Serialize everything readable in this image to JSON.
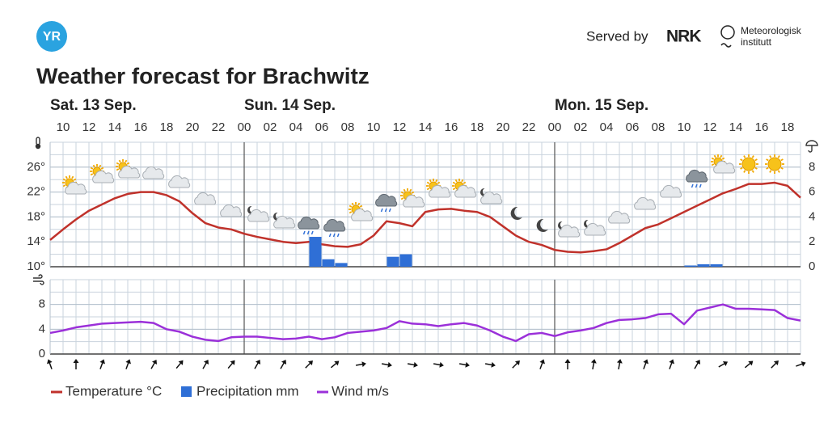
{
  "header": {
    "logo": "YR",
    "title": "Weather forecast for Brachwitz",
    "served_by": "Served by",
    "nrk": "NRK",
    "met": [
      "Meteorologisk",
      "institutt"
    ]
  },
  "chart_data": [
    {
      "type": "combo",
      "days": [
        "Sat. 13 Sep.",
        "Sun. 14 Sep.",
        "Mon. 15 Sep."
      ],
      "categories": [
        null,
        "10",
        null,
        "12",
        null,
        "14",
        null,
        "16",
        null,
        "18",
        null,
        "20",
        null,
        "22",
        null,
        "00",
        null,
        "02",
        null,
        "04",
        null,
        "06",
        null,
        "08",
        null,
        "10",
        null,
        "12",
        null,
        "14",
        null,
        "16",
        null,
        "18",
        null,
        "20",
        null,
        "22",
        null,
        "00",
        null,
        "02",
        null,
        "04",
        null,
        "06",
        null,
        "08",
        null,
        "10",
        null,
        "12",
        null,
        "14",
        null,
        "16",
        null,
        "18",
        null
      ],
      "ylim": [
        10,
        30
      ],
      "yticks": [
        {
          "value": 10,
          "label": "10°"
        },
        {
          "value": 14,
          "label": "14°"
        },
        {
          "value": 18,
          "label": "18°"
        },
        {
          "value": 22,
          "label": "22°"
        },
        {
          "value": 26,
          "label": "26°"
        }
      ],
      "y2lim": [
        0,
        10
      ],
      "y2ticks": [
        0,
        2,
        4,
        6,
        8
      ],
      "grid": true,
      "series": [
        {
          "name": "Temperature °C",
          "kind": "line",
          "color": "#c0322b",
          "values": [
            14.3,
            16.0,
            17.6,
            19.0,
            20.0,
            21.0,
            21.7,
            22.0,
            22.0,
            21.5,
            20.5,
            18.6,
            17.0,
            16.3,
            16.0,
            15.3,
            14.8,
            14.4,
            14.0,
            13.8,
            14.0,
            13.6,
            13.3,
            13.2,
            13.6,
            15.0,
            17.3,
            17.0,
            16.5,
            18.8,
            19.2,
            19.3,
            19.0,
            18.8,
            18.0,
            16.5,
            15.0,
            14.0,
            13.5,
            12.7,
            12.4,
            12.3,
            12.5,
            12.8,
            13.8,
            15.0,
            16.2,
            16.8,
            17.8,
            18.8,
            19.8,
            20.8,
            21.8,
            22.5,
            23.3,
            23.3,
            23.5,
            23.0,
            21.1
          ]
        },
        {
          "name": "Precipitation mm",
          "kind": "bar",
          "axis": "y2",
          "color": "#2f6fd6",
          "values": [
            0,
            0,
            0,
            0,
            0,
            0,
            0,
            0,
            0,
            0,
            0,
            0,
            0,
            0,
            0,
            0,
            0,
            0,
            0,
            0,
            2.4,
            0.6,
            0.3,
            0,
            0,
            0,
            0.8,
            1.0,
            0,
            0,
            0,
            0,
            0,
            0,
            0,
            0,
            0,
            0,
            0,
            0,
            0,
            0,
            0,
            0,
            0,
            0,
            0,
            0,
            0,
            0.1,
            0.2,
            0.2,
            0,
            0,
            0,
            0,
            0,
            0,
            0
          ]
        }
      ]
    },
    {
      "type": "line",
      "ylim": [
        0,
        12
      ],
      "yticks": [
        0,
        4,
        8
      ],
      "grid": true,
      "series": [
        {
          "name": "Wind m/s",
          "color": "#9b30d9",
          "values": [
            3.4,
            3.8,
            4.3,
            4.6,
            4.9,
            5.0,
            5.1,
            5.2,
            5.0,
            4.0,
            3.6,
            2.8,
            2.3,
            2.1,
            2.7,
            2.8,
            2.8,
            2.6,
            2.4,
            2.5,
            2.8,
            2.4,
            2.7,
            3.4,
            3.6,
            3.8,
            4.2,
            5.3,
            4.9,
            4.8,
            4.5,
            4.8,
            5.0,
            4.6,
            3.8,
            2.8,
            2.1,
            3.2,
            3.4,
            2.9,
            3.5,
            3.8,
            4.2,
            5.0,
            5.5,
            5.6,
            5.8,
            6.4,
            6.5,
            4.8,
            7.0,
            7.5,
            8.0,
            7.3,
            7.3,
            7.2,
            7.1,
            5.8,
            5.4
          ]
        }
      ],
      "wind_direction_deg": [
        -20,
        0,
        20,
        20,
        30,
        40,
        30,
        40,
        30,
        30,
        45,
        50,
        80,
        100,
        100,
        100,
        100,
        100,
        45,
        20,
        0,
        10,
        10,
        20,
        20,
        30,
        60,
        50,
        45,
        70
      ]
    }
  ]
}
